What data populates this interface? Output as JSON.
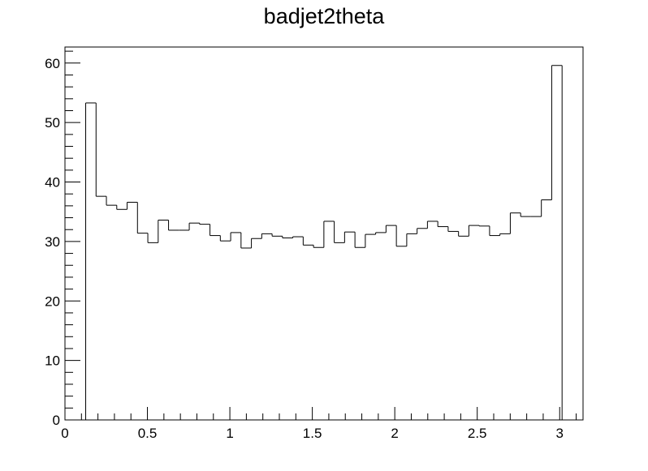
{
  "chart_data": {
    "type": "bar",
    "title": "badjet2theta",
    "xlabel": "",
    "ylabel": "",
    "xlim": [
      0,
      3.1416
    ],
    "ylim": [
      0,
      62.7
    ],
    "grid": false,
    "legend": "none",
    "x_tick_labels": [
      "0",
      "0.5",
      "1",
      "1.5",
      "2",
      "2.5",
      "3"
    ],
    "y_tick_labels": [
      "0",
      "10",
      "20",
      "30",
      "40",
      "50",
      "60"
    ],
    "x_ticks": [
      0,
      0.5,
      1,
      1.5,
      2,
      2.5,
      3
    ],
    "y_ticks": [
      0,
      10,
      20,
      30,
      40,
      50,
      60
    ],
    "bin_width": 0.0628,
    "bin_start": 0.1257,
    "values": [
      53.3,
      37.6,
      36.1,
      35.4,
      36.6,
      31.4,
      29.8,
      33.6,
      31.9,
      31.9,
      33.1,
      32.9,
      31.0,
      30.1,
      31.5,
      28.9,
      30.5,
      31.3,
      30.9,
      30.6,
      30.8,
      29.4,
      29.0,
      33.4,
      29.8,
      31.6,
      29.0,
      31.2,
      31.5,
      32.7,
      29.2,
      31.3,
      32.2,
      33.4,
      32.5,
      31.7,
      30.9,
      32.7,
      32.6,
      31.0,
      31.3,
      34.8,
      34.2,
      34.2,
      37.0,
      59.6
    ],
    "colors": {
      "line": "#000000",
      "frame": "#000000",
      "background": "#ffffff"
    }
  }
}
